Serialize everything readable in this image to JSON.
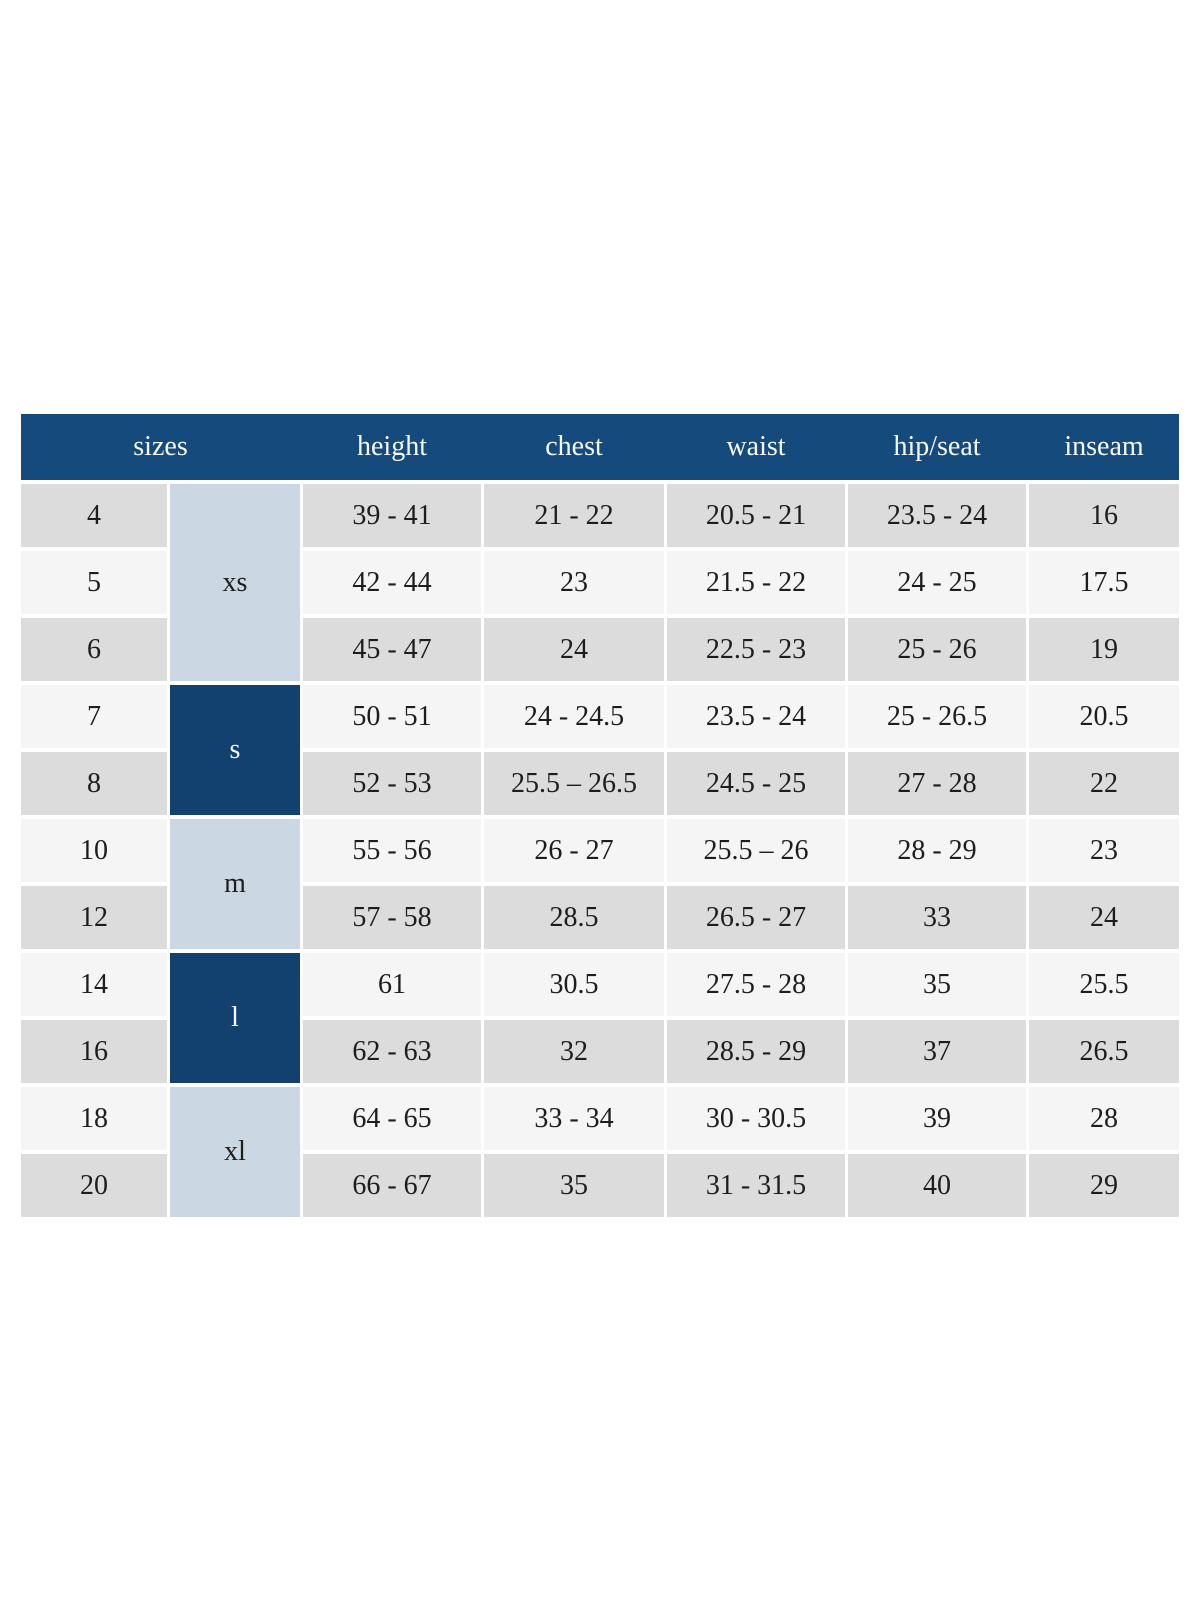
{
  "chart_data": {
    "type": "table",
    "columns": [
      "sizes",
      "height",
      "chest",
      "waist",
      "hip/seat",
      "inseam"
    ],
    "size_groups": [
      {
        "label": "xs",
        "span": 3,
        "variant": "light-blue",
        "sizes": [
          "4",
          "5",
          "6"
        ]
      },
      {
        "label": "s",
        "span": 2,
        "variant": "navy",
        "sizes": [
          "7",
          "8"
        ]
      },
      {
        "label": "m",
        "span": 2,
        "variant": "light-blue",
        "sizes": [
          "10",
          "12"
        ]
      },
      {
        "label": "l",
        "span": 2,
        "variant": "navy",
        "sizes": [
          "14",
          "16"
        ]
      },
      {
        "label": "xl",
        "span": 2,
        "variant": "light-blue",
        "sizes": [
          "18",
          "20"
        ]
      }
    ],
    "rows": [
      {
        "size": "4",
        "group": "xs",
        "height": "39 - 41",
        "chest": "21 - 22",
        "waist": "20.5 - 21",
        "hip_seat": "23.5 - 24",
        "inseam": "16"
      },
      {
        "size": "5",
        "group": "xs",
        "height": "42 - 44",
        "chest": "23",
        "waist": "21.5 - 22",
        "hip_seat": "24 - 25",
        "inseam": "17.5"
      },
      {
        "size": "6",
        "group": "xs",
        "height": "45 - 47",
        "chest": "24",
        "waist": "22.5 - 23",
        "hip_seat": "25 - 26",
        "inseam": "19"
      },
      {
        "size": "7",
        "group": "s",
        "height": "50 - 51",
        "chest": "24 - 24.5",
        "waist": "23.5 - 24",
        "hip_seat": "25 - 26.5",
        "inseam": "20.5"
      },
      {
        "size": "8",
        "group": "s",
        "height": "52 - 53",
        "chest": "25.5 – 26.5",
        "waist": "24.5 - 25",
        "hip_seat": "27 - 28",
        "inseam": "22"
      },
      {
        "size": "10",
        "group": "m",
        "height": "55 - 56",
        "chest": "26 - 27",
        "waist": "25.5 – 26",
        "hip_seat": "28 - 29",
        "inseam": "23"
      },
      {
        "size": "12",
        "group": "m",
        "height": "57 - 58",
        "chest": "28.5",
        "waist": "26.5 - 27",
        "hip_seat": "33",
        "inseam": "24"
      },
      {
        "size": "14",
        "group": "l",
        "height": "61",
        "chest": "30.5",
        "waist": "27.5 - 28",
        "hip_seat": "35",
        "inseam": "25.5"
      },
      {
        "size": "16",
        "group": "l",
        "height": "62 - 63",
        "chest": "32",
        "waist": "28.5 - 29",
        "hip_seat": "37",
        "inseam": "26.5"
      },
      {
        "size": "18",
        "group": "xl",
        "height": "64 - 65",
        "chest": "33 - 34",
        "waist": "30 - 30.5",
        "hip_seat": "39",
        "inseam": "28"
      },
      {
        "size": "20",
        "group": "xl",
        "height": "66 - 67",
        "chest": "35",
        "waist": "31 - 31.5",
        "hip_seat": "40",
        "inseam": "29"
      }
    ]
  },
  "colors": {
    "header_navy": "#154a7d",
    "group_navy": "#12406f",
    "group_light_blue": "#ccd7e4",
    "row_gray": "#dcdcdc",
    "row_light": "#f5f5f5",
    "header_text": "#f7f8fa",
    "cell_text": "#1d1d1d",
    "page_background": "#ffffff"
  }
}
